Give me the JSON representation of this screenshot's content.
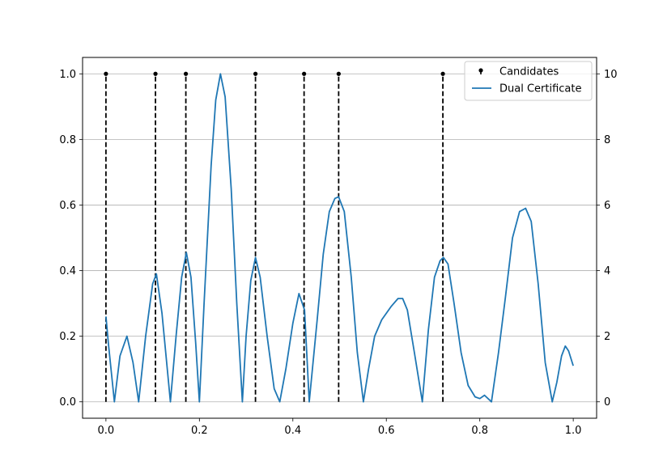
{
  "chart_data": {
    "type": "line",
    "title": "",
    "xlabel": "",
    "ylabel_left": "",
    "ylabel_right": "",
    "xlim": [
      -0.05,
      1.05
    ],
    "ylim_left": [
      -0.05,
      1.05
    ],
    "ylim_right": [
      -0.5,
      10.5
    ],
    "x_ticks": [
      0.0,
      0.2,
      0.4,
      0.6,
      0.8,
      1.0
    ],
    "x_tick_labels": [
      "0.0",
      "0.2",
      "0.4",
      "0.6",
      "0.8",
      "1.0"
    ],
    "y_left_ticks": [
      0.0,
      0.2,
      0.4,
      0.6,
      0.8,
      1.0
    ],
    "y_left_tick_labels": [
      "0.0",
      "0.2",
      "0.4",
      "0.6",
      "0.8",
      "1.0"
    ],
    "y_right_ticks": [
      0,
      2,
      4,
      6,
      8,
      10
    ],
    "y_right_tick_labels": [
      "0",
      "2",
      "4",
      "6",
      "8",
      "10"
    ],
    "grid": "horizontal (right axis)",
    "legend_position": "top-right",
    "series": [
      {
        "name": "Candidates",
        "kind": "stem",
        "axis": "right",
        "color": "#000000",
        "x": [
          0.0,
          0.106,
          0.171,
          0.32,
          0.424,
          0.498,
          0.721
        ],
        "y": [
          10,
          10,
          10,
          10,
          10,
          10,
          10
        ]
      },
      {
        "name": "Dual Certificate",
        "kind": "line",
        "axis": "left",
        "color": "#1f77b4",
        "x": [
          0.0,
          0.005,
          0.018,
          0.03,
          0.045,
          0.058,
          0.07,
          0.085,
          0.1,
          0.108,
          0.12,
          0.138,
          0.15,
          0.162,
          0.172,
          0.182,
          0.192,
          0.2,
          0.21,
          0.225,
          0.235,
          0.245,
          0.255,
          0.268,
          0.28,
          0.292,
          0.3,
          0.31,
          0.32,
          0.33,
          0.345,
          0.36,
          0.372,
          0.385,
          0.4,
          0.413,
          0.425,
          0.435,
          0.452,
          0.465,
          0.478,
          0.49,
          0.498,
          0.51,
          0.525,
          0.538,
          0.551,
          0.562,
          0.575,
          0.59,
          0.61,
          0.625,
          0.635,
          0.645,
          0.66,
          0.677,
          0.69,
          0.703,
          0.715,
          0.722,
          0.732,
          0.745,
          0.76,
          0.775,
          0.79,
          0.8,
          0.81,
          0.825,
          0.84,
          0.855,
          0.87,
          0.885,
          0.898,
          0.91,
          0.925,
          0.94,
          0.955,
          0.965,
          0.975,
          0.983,
          0.99,
          1.0
        ],
        "y": [
          0.26,
          0.18,
          0.0,
          0.14,
          0.2,
          0.12,
          0.0,
          0.2,
          0.36,
          0.39,
          0.27,
          0.0,
          0.2,
          0.38,
          0.455,
          0.38,
          0.18,
          0.0,
          0.3,
          0.72,
          0.92,
          1.0,
          0.93,
          0.65,
          0.3,
          0.0,
          0.2,
          0.37,
          0.44,
          0.38,
          0.2,
          0.04,
          0.0,
          0.1,
          0.24,
          0.33,
          0.28,
          0.0,
          0.25,
          0.45,
          0.58,
          0.62,
          0.625,
          0.58,
          0.38,
          0.15,
          0.0,
          0.1,
          0.2,
          0.25,
          0.29,
          0.315,
          0.315,
          0.28,
          0.15,
          0.0,
          0.22,
          0.38,
          0.43,
          0.44,
          0.42,
          0.3,
          0.15,
          0.05,
          0.015,
          0.01,
          0.02,
          0.0,
          0.15,
          0.32,
          0.5,
          0.58,
          0.59,
          0.55,
          0.36,
          0.12,
          0.0,
          0.06,
          0.14,
          0.17,
          0.155,
          0.11
        ]
      }
    ]
  }
}
